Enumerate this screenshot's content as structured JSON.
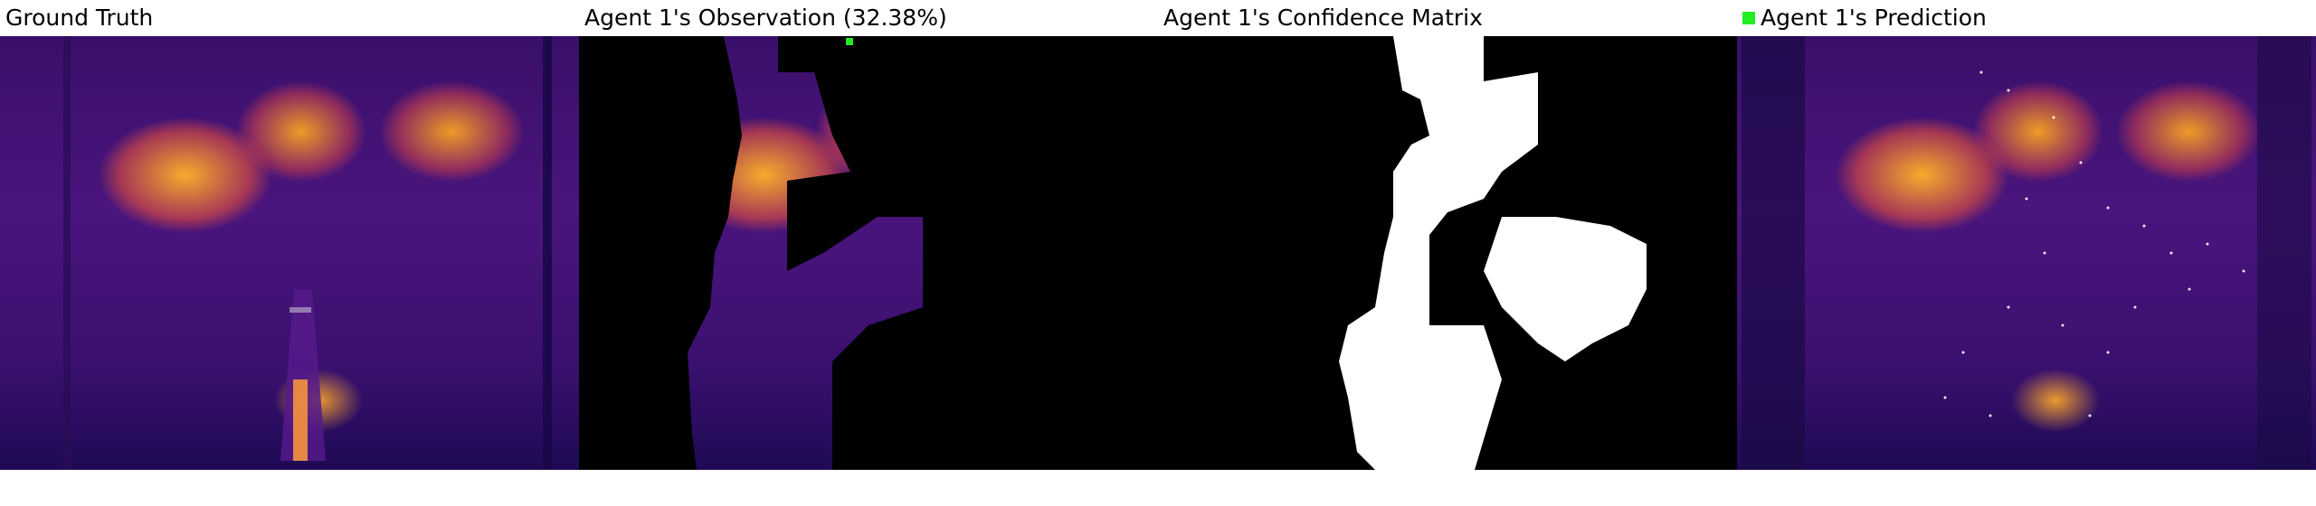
{
  "panels": [
    {
      "title": "Ground Truth"
    },
    {
      "title": "Agent 1's Observation (32.38%)"
    },
    {
      "title": "Agent 1's Confidence Matrix"
    },
    {
      "title": "Agent 1's Prediction",
      "legend_color": "#22ee22"
    }
  ],
  "colors": {
    "background": "#ffffff",
    "mask": "#000000",
    "confidence": "#ffffff",
    "legend": "#22ee22"
  }
}
